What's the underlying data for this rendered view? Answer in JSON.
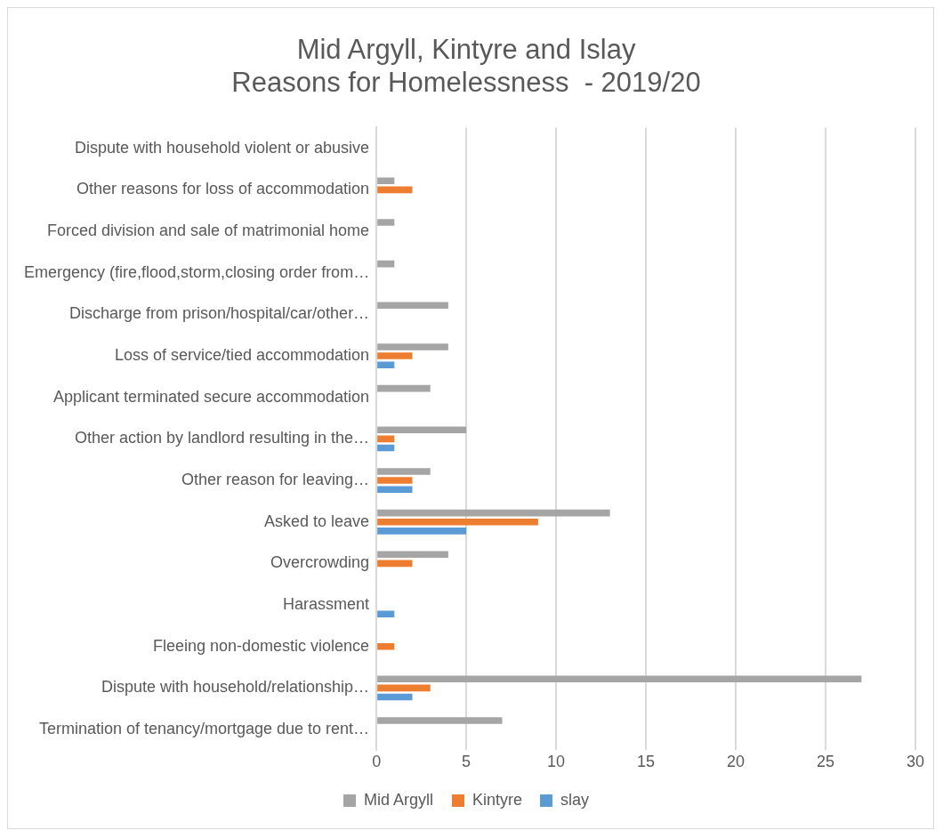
{
  "chart_data": {
    "type": "bar",
    "orientation": "horizontal",
    "title": "Mid Argyll, Kintyre and Islay\nReasons for Homelessness  - 2019/20",
    "categories": [
      "Dispute with household violent or abusive",
      "Other reasons for loss of accommodation",
      "Forced division and sale of matrimonial home",
      "Emergency (fire,flood,storm,closing order from…",
      "Discharge from prison/hospital/car/other…",
      "Loss of service/tied accommodation",
      "Applicant terminated secure accommodation",
      "Other action by landlord resulting in the…",
      "Other reason for leaving…",
      "Asked to leave",
      "Overcrowding",
      "Harassment",
      "Fleeing non-domestic violence",
      "Dispute with household/relationship…",
      "Termination of tenancy/mortgage due to rent…"
    ],
    "series": [
      {
        "name": "Mid Argyll",
        "color": "#a5a5a5",
        "values": [
          0,
          1,
          1,
          1,
          4,
          4,
          3,
          5,
          3,
          13,
          4,
          0,
          0,
          27,
          7
        ]
      },
      {
        "name": "Kintyre",
        "color": "#ed7d31",
        "values": [
          0,
          2,
          0,
          0,
          0,
          2,
          0,
          1,
          2,
          9,
          2,
          0,
          1,
          3,
          0
        ]
      },
      {
        "name": "slay",
        "color": "#5b9bd5",
        "values": [
          0,
          0,
          0,
          0,
          0,
          1,
          0,
          1,
          2,
          5,
          0,
          1,
          0,
          2,
          0
        ]
      }
    ],
    "xlim": [
      0,
      30
    ],
    "xticks": [
      0,
      5,
      10,
      15,
      20,
      25,
      30
    ],
    "grid": "x",
    "legend": "bottom"
  }
}
